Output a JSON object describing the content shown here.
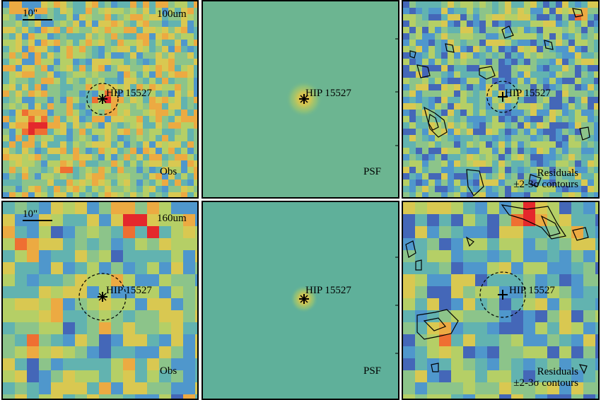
{
  "target": "HIP 15527",
  "rows": [
    {
      "band": "100um",
      "scale": "10\"",
      "obs_label": "Obs",
      "psf_label": "PSF",
      "res_label_1": "Residuals",
      "res_label_2": "±2-3σ contours"
    },
    {
      "band": "160um",
      "scale": "10\"",
      "obs_label": "Obs",
      "psf_label": "PSF",
      "res_label_1": "Residuals",
      "res_label_2": "±2-3σ contours"
    }
  ],
  "colors": {
    "background_psf_top": "#6cb591",
    "background_psf_bottom": "#5fb09a",
    "hot": "#e8302a",
    "warm": "#f0a94a",
    "mid": "#b9cf62",
    "cool": "#4fa0c8",
    "cold": "#5b4aa6"
  }
}
